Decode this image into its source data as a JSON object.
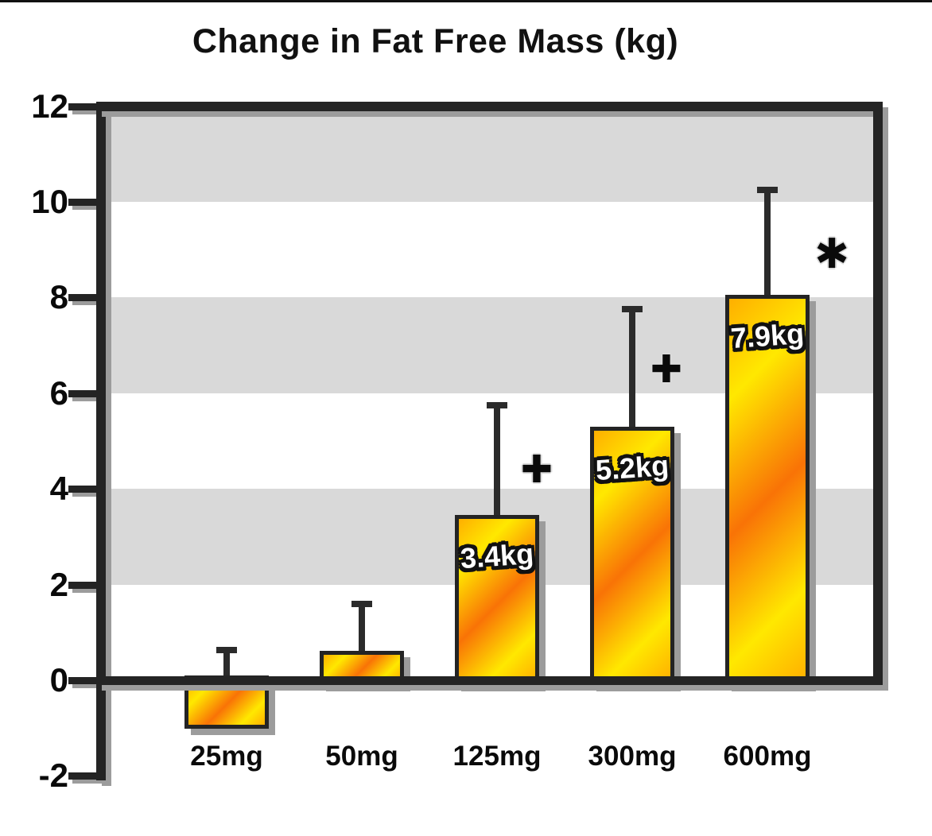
{
  "figure": {
    "panel_label": "A",
    "top_border_color": "#111111"
  },
  "chart_data": {
    "type": "bar",
    "title": "Change in Fat Free Mass (kg)",
    "xlabel": "",
    "ylabel": "",
    "categories": [
      "25mg",
      "50mg",
      "125mg",
      "300mg",
      "600mg"
    ],
    "values": [
      -1.0,
      0.6,
      3.4,
      5.2,
      7.9
    ],
    "bar_value_labels": [
      "",
      "",
      "3.4kg",
      "5.2kg",
      "7.9kg"
    ],
    "rendered_bar_tops": [
      -1.02,
      0.62,
      3.45,
      5.3,
      8.05
    ],
    "error_bar_tops": [
      0.63,
      1.6,
      5.75,
      7.75,
      10.25
    ],
    "ylim": [
      -2,
      12
    ],
    "yticks": [
      12,
      10,
      8,
      6,
      4,
      2,
      0,
      -2
    ],
    "grid_bands": [
      [
        10,
        12
      ],
      [
        6,
        8
      ],
      [
        2,
        4
      ]
    ],
    "legend": "none",
    "annotations": [
      {
        "symbol": "✚",
        "name": "plus-marker",
        "category_index": 2,
        "value": 4.4,
        "dx": 50,
        "size": 48
      },
      {
        "symbol": "✚",
        "name": "plus-marker",
        "category_index": 3,
        "value": 6.5,
        "dx": 43,
        "size": 48
      },
      {
        "symbol": "✱",
        "name": "asterisk-marker",
        "category_index": 4,
        "value": 8.9,
        "dx": 81,
        "size": 52
      }
    ],
    "colors": {
      "frame": "#242424",
      "grid_band": "#d9d9d9",
      "shadow": "#9c9c9c",
      "bar_yellow": "#ffe800",
      "bar_orange": "#f97306",
      "bar_gold": "#ffaf00",
      "bar_label_text": "#ffffff",
      "bar_label_outline": "#111111",
      "text": "#0a0a0a"
    }
  }
}
